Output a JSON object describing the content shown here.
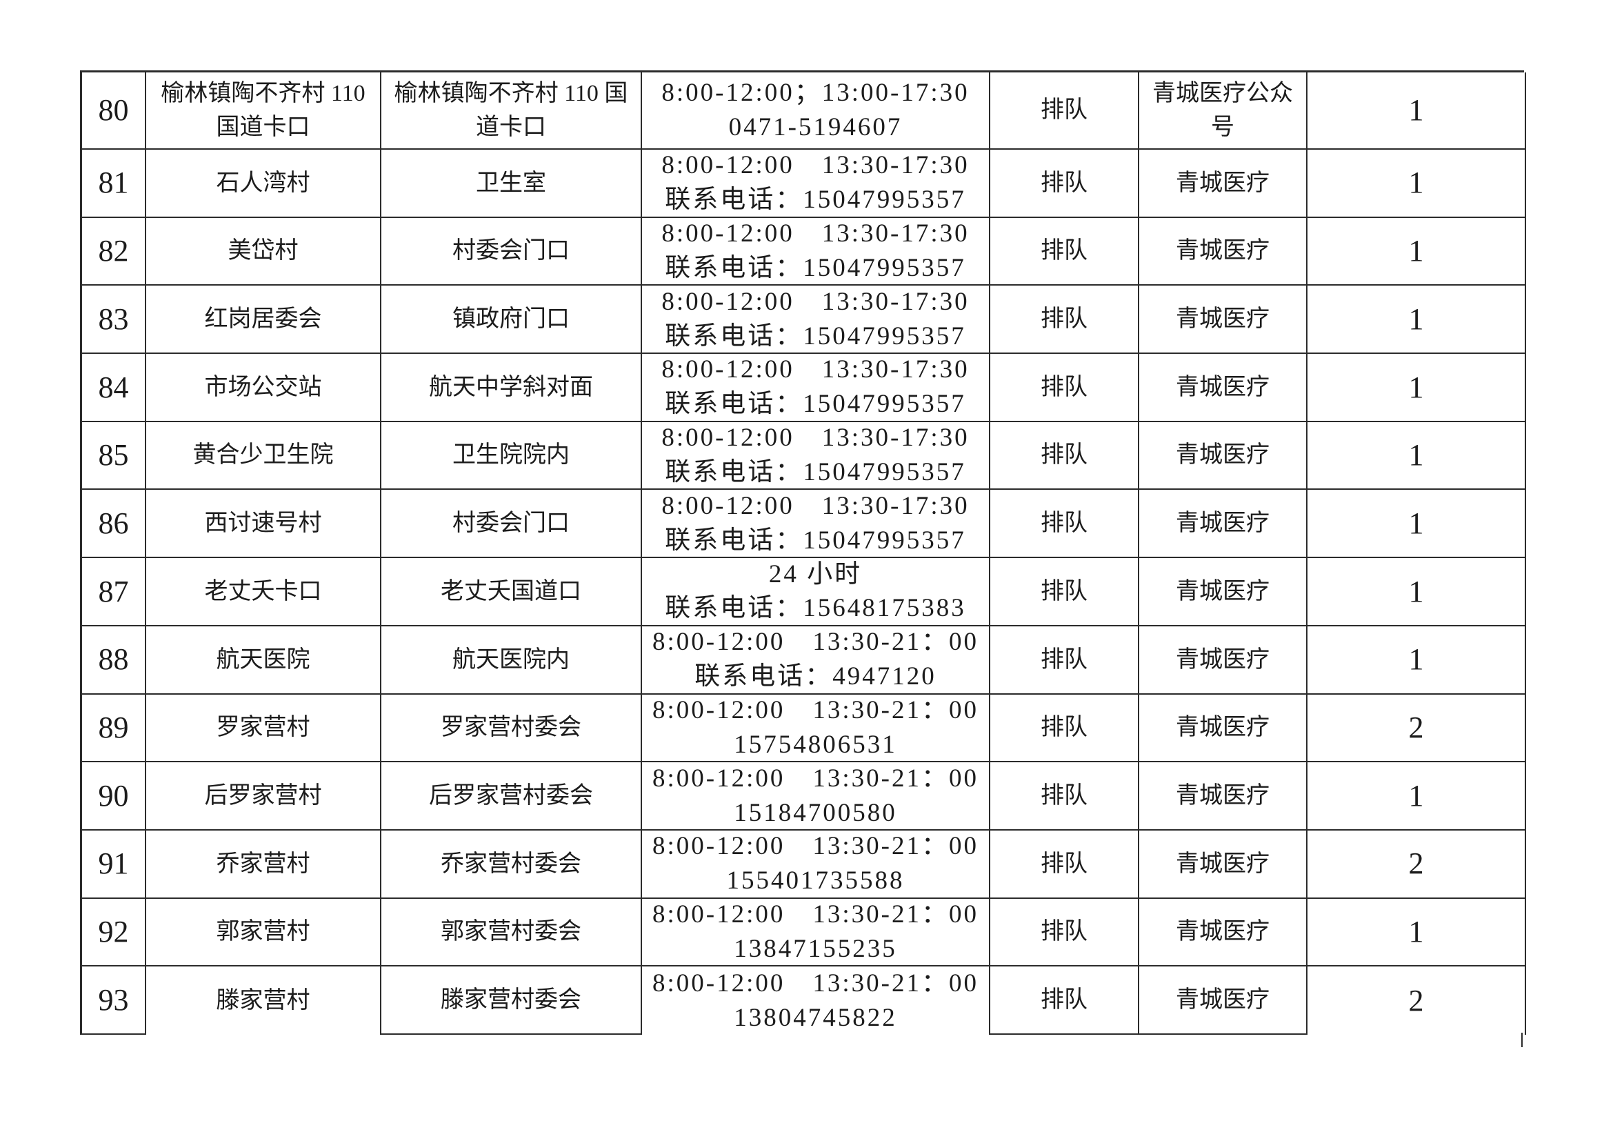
{
  "page": {
    "background_color": "#ffffff",
    "text_color": "#1c1c1c",
    "border_color": "#2b2b2b"
  },
  "table": {
    "columns_semantic": [
      "no",
      "name",
      "location",
      "schedule",
      "method",
      "platform",
      "count"
    ],
    "rows": [
      {
        "no": "80",
        "name": "榆林镇陶不齐村 110\n国道卡口",
        "location": "榆林镇陶不齐村 110 国\n道卡口",
        "schedule": "8:00-12:00；13:00-17:30\n0471-5194607",
        "method": "排队",
        "platform": "青城医疗公众\n号",
        "count": "1"
      },
      {
        "no": "81",
        "name": "石人湾村",
        "location": "卫生室",
        "schedule": "8:00-12:00　13:30-17:30\n联系电话：15047995357",
        "method": "排队",
        "platform": "青城医疗",
        "count": "1"
      },
      {
        "no": "82",
        "name": "美岱村",
        "location": "村委会门口",
        "schedule": "8:00-12:00　13:30-17:30\n联系电话：15047995357",
        "method": "排队",
        "platform": "青城医疗",
        "count": "1"
      },
      {
        "no": "83",
        "name": "红岗居委会",
        "location": "镇政府门口",
        "schedule": "8:00-12:00　13:30-17:30\n联系电话：15047995357",
        "method": "排队",
        "platform": "青城医疗",
        "count": "1"
      },
      {
        "no": "84",
        "name": "市场公交站",
        "location": "航天中学斜对面",
        "schedule": "8:00-12:00　13:30-17:30\n联系电话：15047995357",
        "method": "排队",
        "platform": "青城医疗",
        "count": "1"
      },
      {
        "no": "85",
        "name": "黄合少卫生院",
        "location": "卫生院院内",
        "schedule": "8:00-12:00　13:30-17:30\n联系电话：15047995357",
        "method": "排队",
        "platform": "青城医疗",
        "count": "1"
      },
      {
        "no": "86",
        "name": "西讨速号村",
        "location": "村委会门口",
        "schedule": "8:00-12:00　13:30-17:30\n联系电话：15047995357",
        "method": "排队",
        "platform": "青城医疗",
        "count": "1"
      },
      {
        "no": "87",
        "name": "老丈夭卡口",
        "location": "老丈夭国道口",
        "schedule": "24 小时\n联系电话：15648175383",
        "method": "排队",
        "platform": "青城医疗",
        "count": "1"
      },
      {
        "no": "88",
        "name": "航天医院",
        "location": "航天医院内",
        "schedule": "8:00-12:00　13:30-21：00\n联系电话：4947120",
        "method": "排队",
        "platform": "青城医疗",
        "count": "1"
      },
      {
        "no": "89",
        "name": "罗家营村",
        "location": "罗家营村委会",
        "schedule": "8:00-12:00　13:30-21：00\n15754806531",
        "method": "排队",
        "platform": "青城医疗",
        "count": "2"
      },
      {
        "no": "90",
        "name": "后罗家营村",
        "location": "后罗家营村委会",
        "schedule": "8:00-12:00　13:30-21：00\n15184700580",
        "method": "排队",
        "platform": "青城医疗",
        "count": "1"
      },
      {
        "no": "91",
        "name": "乔家营村",
        "location": "乔家营村委会",
        "schedule": "8:00-12:00　13:30-21：00\n155401735588",
        "method": "排队",
        "platform": "青城医疗",
        "count": "2"
      },
      {
        "no": "92",
        "name": "郭家营村",
        "location": "郭家营村委会",
        "schedule": "8:00-12:00　13:30-21：00\n13847155235",
        "method": "排队",
        "platform": "青城医疗",
        "count": "1"
      },
      {
        "no": "93",
        "name": "滕家营村",
        "location": "滕家营村委会",
        "schedule": "8:00-12:00　13:30-21：00\n13804745822",
        "method": "排队",
        "platform": "青城医疗",
        "count": "2"
      }
    ]
  }
}
